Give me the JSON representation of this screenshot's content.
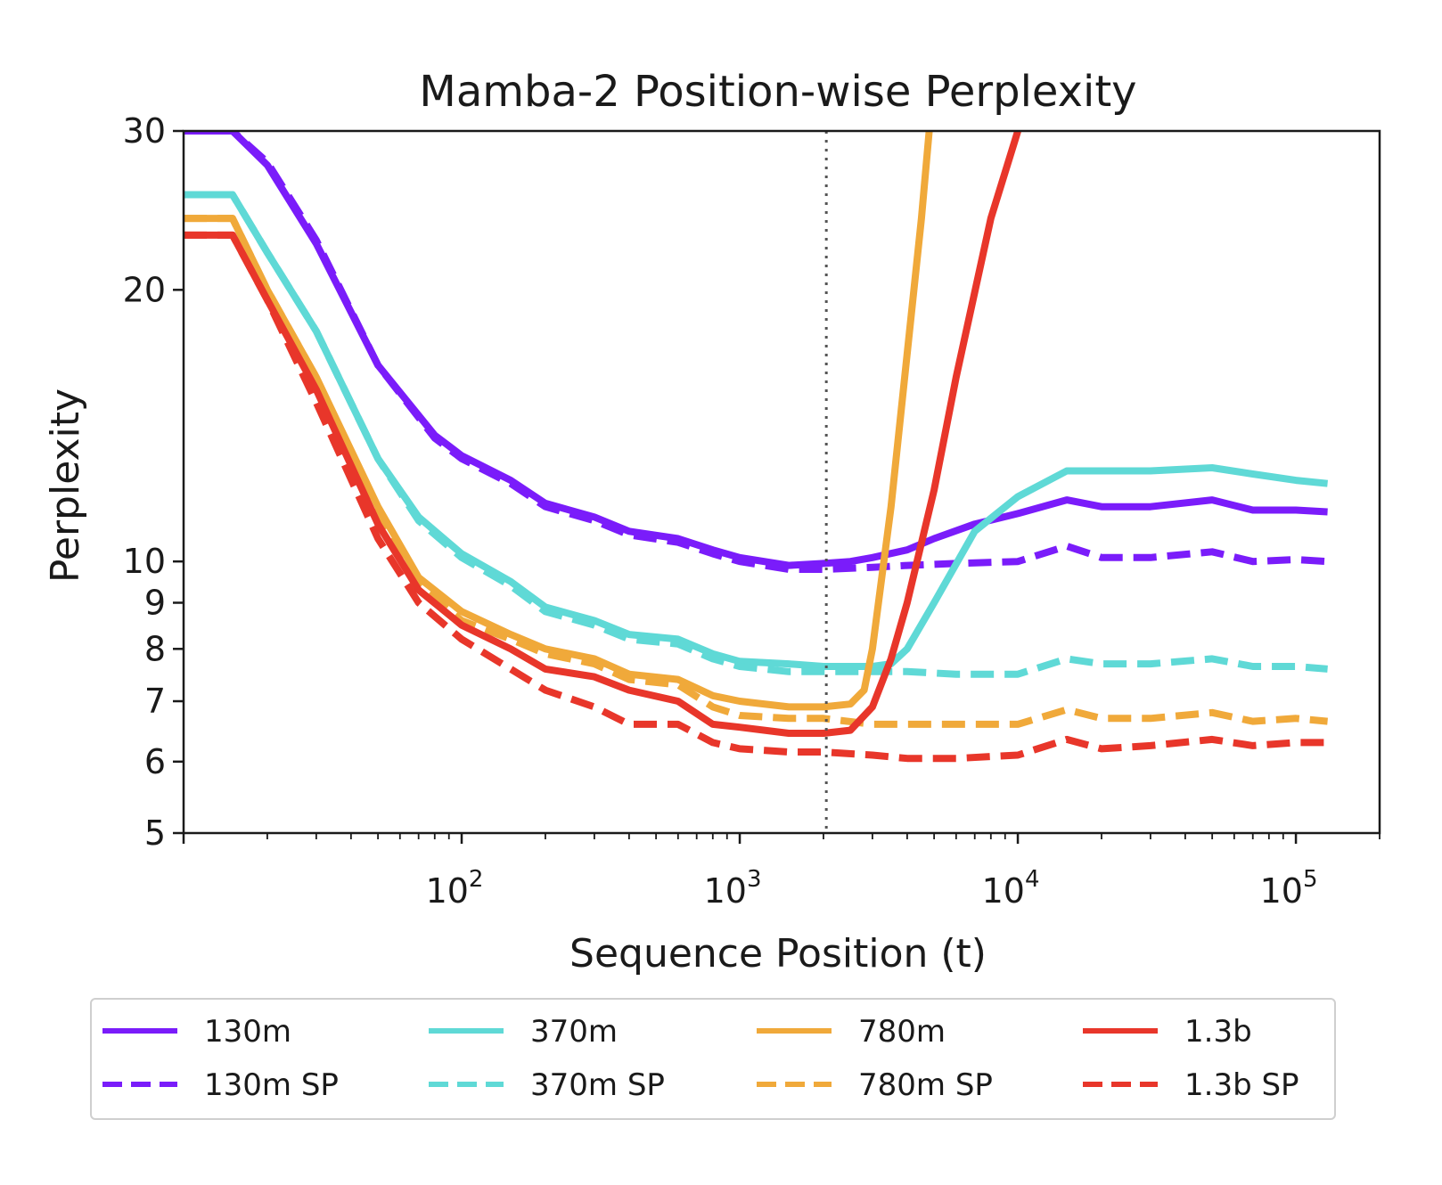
{
  "chart_data": {
    "type": "line",
    "title": "Mamba-2 Position-wise Perplexity",
    "xlabel": "Sequence Position (t)",
    "ylabel": "Perplexity",
    "xscale": "log",
    "yscale": "log",
    "xlim": [
      10,
      200000
    ],
    "ylim": [
      5,
      30
    ],
    "xticks": [
      {
        "value": 100,
        "base": "10",
        "exp": "2"
      },
      {
        "value": 1000,
        "base": "10",
        "exp": "3"
      },
      {
        "value": 10000,
        "base": "10",
        "exp": "4"
      },
      {
        "value": 100000,
        "base": "10",
        "exp": "5"
      }
    ],
    "yticks": [
      {
        "value": 5,
        "label": "5"
      },
      {
        "value": 6,
        "label": "6"
      },
      {
        "value": 7,
        "label": "7"
      },
      {
        "value": 8,
        "label": "8"
      },
      {
        "value": 9,
        "label": "9"
      },
      {
        "value": 10,
        "label": "10"
      },
      {
        "value": 20,
        "label": "20"
      },
      {
        "value": 30,
        "label": "30"
      }
    ],
    "reference_line": {
      "x": 2048,
      "style": "dotted",
      "color": "#555555"
    },
    "grid": false,
    "legend": {
      "position": "below",
      "columns": 4
    },
    "series": [
      {
        "name": "130m",
        "color": "#7a1cfa",
        "dash": "solid",
        "x": [
          10,
          15,
          20,
          30,
          50,
          80,
          100,
          150,
          200,
          300,
          400,
          600,
          800,
          1000,
          1500,
          2000,
          2500,
          3000,
          4000,
          5000,
          7000,
          10000,
          15000,
          20000,
          30000,
          50000,
          70000,
          100000,
          130000
        ],
        "y": [
          30,
          30,
          27.5,
          22.5,
          16.5,
          13.8,
          13.1,
          12.3,
          11.6,
          11.2,
          10.8,
          10.6,
          10.3,
          10.1,
          9.9,
          9.95,
          10.0,
          10.1,
          10.3,
          10.6,
          11.0,
          11.3,
          11.7,
          11.5,
          11.5,
          11.7,
          11.4,
          11.4,
          11.35
        ]
      },
      {
        "name": "130m SP",
        "color": "#7a1cfa",
        "dash": "dashed",
        "x": [
          10,
          15,
          20,
          30,
          50,
          80,
          100,
          150,
          200,
          300,
          400,
          600,
          800,
          1000,
          1500,
          2000,
          3000,
          4000,
          6000,
          10000,
          15000,
          20000,
          30000,
          50000,
          70000,
          100000,
          130000
        ],
        "y": [
          30,
          30,
          27.7,
          22.7,
          16.5,
          13.7,
          13.0,
          12.2,
          11.5,
          11.1,
          10.7,
          10.5,
          10.2,
          10.0,
          9.8,
          9.8,
          9.85,
          9.9,
          9.95,
          10.0,
          10.4,
          10.1,
          10.1,
          10.25,
          10.0,
          10.05,
          10.0
        ]
      },
      {
        "name": "370m",
        "color": "#5fd9d6",
        "dash": "solid",
        "x": [
          10,
          15,
          20,
          30,
          50,
          70,
          100,
          150,
          200,
          300,
          400,
          600,
          800,
          1000,
          1500,
          2000,
          2500,
          3000,
          3500,
          4000,
          5000,
          7000,
          10000,
          15000,
          20000,
          30000,
          50000,
          70000,
          100000,
          130000
        ],
        "y": [
          25.5,
          25.5,
          22.0,
          18.0,
          13.0,
          11.2,
          10.2,
          9.5,
          8.9,
          8.6,
          8.3,
          8.2,
          7.9,
          7.75,
          7.7,
          7.65,
          7.65,
          7.65,
          7.7,
          8.0,
          9.0,
          10.8,
          11.8,
          12.6,
          12.6,
          12.6,
          12.7,
          12.5,
          12.3,
          12.2
        ]
      },
      {
        "name": "370m SP",
        "color": "#5fd9d6",
        "dash": "dashed",
        "x": [
          10,
          15,
          20,
          30,
          50,
          70,
          100,
          150,
          200,
          300,
          400,
          600,
          800,
          1000,
          1500,
          2000,
          3000,
          4000,
          6000,
          10000,
          15000,
          20000,
          30000,
          50000,
          70000,
          100000,
          130000
        ],
        "y": [
          25.5,
          25.5,
          22.0,
          18.0,
          13.0,
          11.1,
          10.1,
          9.4,
          8.8,
          8.5,
          8.2,
          8.1,
          7.8,
          7.65,
          7.55,
          7.55,
          7.55,
          7.55,
          7.5,
          7.5,
          7.8,
          7.7,
          7.7,
          7.8,
          7.65,
          7.65,
          7.6
        ]
      },
      {
        "name": "780m",
        "color": "#f0a93a",
        "dash": "solid",
        "x": [
          10,
          15,
          20,
          30,
          50,
          70,
          100,
          150,
          200,
          300,
          400,
          600,
          800,
          1000,
          1500,
          2000,
          2500,
          2800,
          3000,
          3500,
          4000,
          4500,
          4800
        ],
        "y": [
          24.0,
          24.0,
          20.0,
          16.0,
          11.5,
          9.6,
          8.8,
          8.3,
          8.0,
          7.8,
          7.5,
          7.4,
          7.1,
          7.0,
          6.9,
          6.9,
          6.95,
          7.2,
          8.0,
          11.5,
          17.0,
          24.0,
          30
        ]
      },
      {
        "name": "780m SP",
        "color": "#f0a93a",
        "dash": "dashed",
        "x": [
          10,
          15,
          20,
          30,
          50,
          70,
          100,
          150,
          200,
          300,
          400,
          600,
          800,
          1000,
          1500,
          2000,
          3000,
          4000,
          6000,
          10000,
          15000,
          20000,
          30000,
          50000,
          70000,
          100000,
          130000
        ],
        "y": [
          24.0,
          24.0,
          20.0,
          16.0,
          11.3,
          9.4,
          8.6,
          8.2,
          7.9,
          7.7,
          7.4,
          7.3,
          6.9,
          6.75,
          6.7,
          6.7,
          6.6,
          6.6,
          6.6,
          6.6,
          6.85,
          6.7,
          6.7,
          6.8,
          6.65,
          6.7,
          6.65
        ]
      },
      {
        "name": "1.3b",
        "color": "#e8362a",
        "dash": "solid",
        "x": [
          10,
          15,
          20,
          30,
          50,
          70,
          100,
          150,
          200,
          300,
          400,
          600,
          800,
          1000,
          1500,
          2000,
          2500,
          3000,
          3500,
          4000,
          5000,
          6000,
          8000,
          10000
        ],
        "y": [
          23.0,
          23.0,
          19.5,
          15.5,
          11.0,
          9.3,
          8.5,
          8.0,
          7.6,
          7.45,
          7.2,
          7.0,
          6.6,
          6.55,
          6.45,
          6.45,
          6.5,
          6.9,
          7.8,
          9.0,
          12.0,
          16.0,
          24.0,
          30
        ]
      },
      {
        "name": "1.3b SP",
        "color": "#e8362a",
        "dash": "dashed",
        "x": [
          10,
          15,
          20,
          30,
          50,
          70,
          100,
          150,
          200,
          300,
          400,
          600,
          800,
          1000,
          1500,
          2000,
          3000,
          4000,
          6000,
          10000,
          15000,
          20000,
          30000,
          50000,
          70000,
          100000,
          130000
        ],
        "y": [
          23.0,
          23.0,
          19.5,
          15.0,
          10.6,
          9.0,
          8.2,
          7.6,
          7.2,
          6.9,
          6.6,
          6.6,
          6.3,
          6.2,
          6.15,
          6.15,
          6.1,
          6.05,
          6.05,
          6.1,
          6.35,
          6.2,
          6.25,
          6.35,
          6.25,
          6.3,
          6.3
        ]
      }
    ]
  }
}
